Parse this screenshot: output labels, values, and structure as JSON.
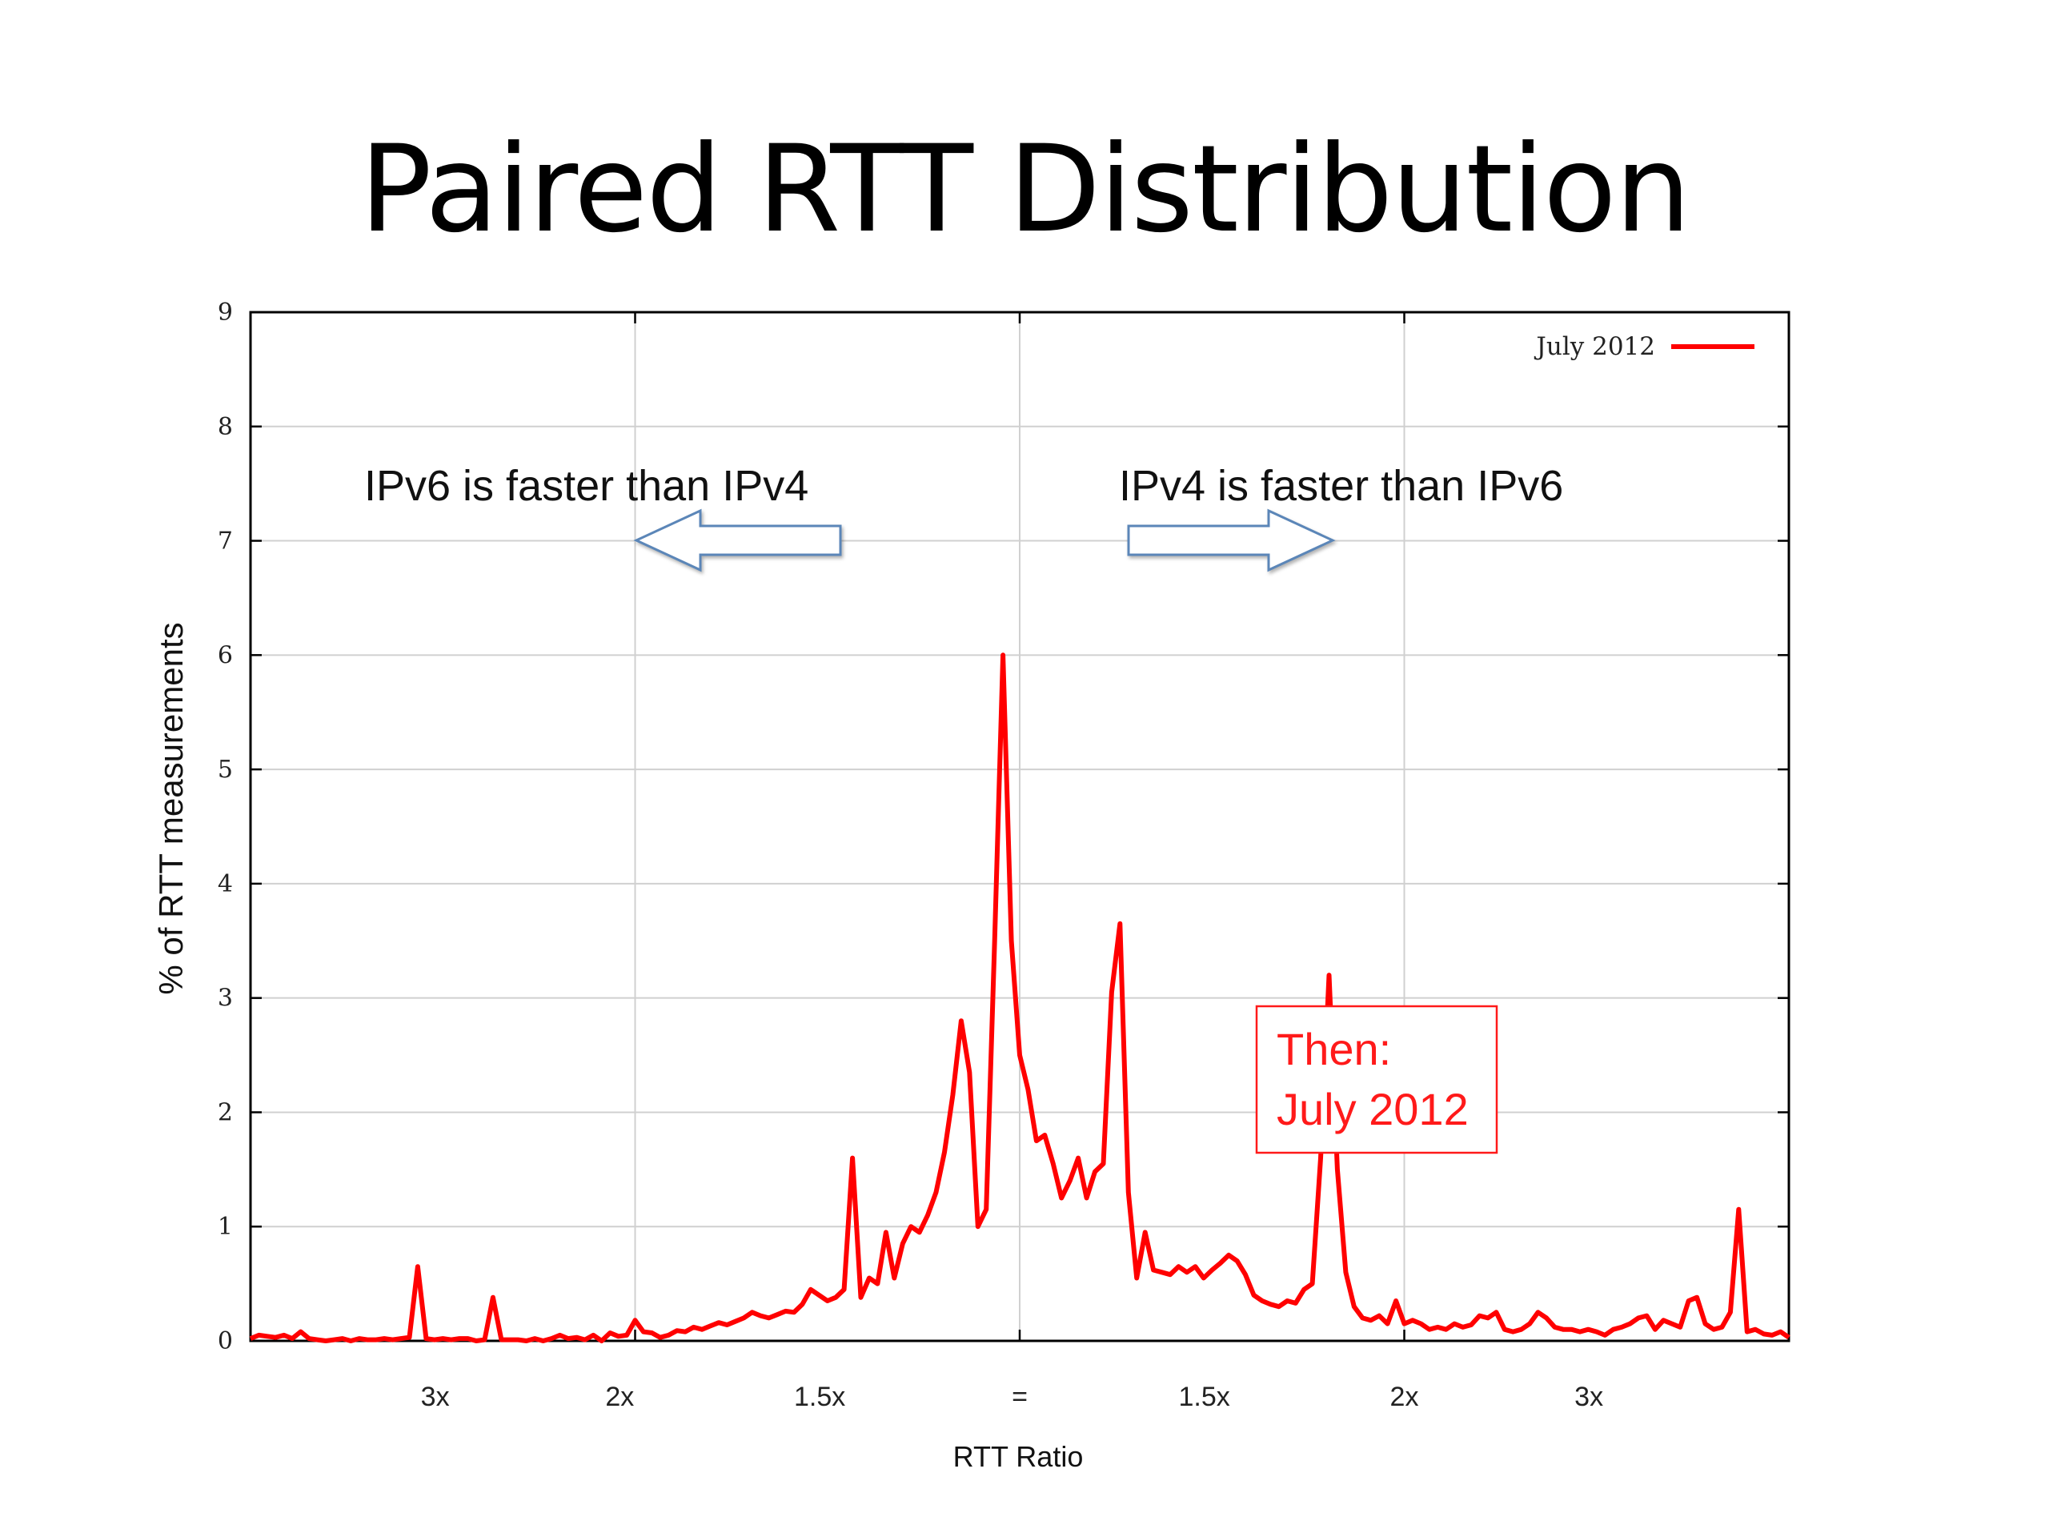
{
  "slide": {
    "title": "Paired RTT Distribution"
  },
  "chart_data": {
    "type": "line",
    "xlabel": "RTT Ratio",
    "ylabel": "% of RTT measurements",
    "ylim": [
      0,
      9
    ],
    "yticks": [
      "0",
      "1",
      "2",
      "3",
      "4",
      "5",
      "6",
      "7",
      "8",
      "9"
    ],
    "xtick_labels": [
      "3x",
      "2x",
      "1.5x",
      "=",
      "1.5x",
      "2x",
      "3x"
    ],
    "grid": true,
    "legend_position": "top-right",
    "series": [
      {
        "name": "July 2012",
        "color": "#ff0000",
        "values": [
          0.02,
          0.05,
          0.04,
          0.03,
          0.05,
          0.02,
          0.08,
          0.02,
          0.01,
          0.0,
          0.01,
          0.02,
          0.0,
          0.02,
          0.01,
          0.01,
          0.02,
          0.01,
          0.02,
          0.03,
          0.65,
          0.02,
          0.01,
          0.02,
          0.01,
          0.02,
          0.02,
          0.0,
          0.01,
          0.38,
          0.01,
          0.01,
          0.01,
          0.0,
          0.02,
          0.0,
          0.02,
          0.05,
          0.02,
          0.03,
          0.01,
          0.05,
          0.0,
          0.07,
          0.04,
          0.05,
          0.18,
          0.08,
          0.07,
          0.03,
          0.05,
          0.09,
          0.08,
          0.12,
          0.1,
          0.13,
          0.16,
          0.14,
          0.17,
          0.2,
          0.25,
          0.22,
          0.2,
          0.23,
          0.26,
          0.25,
          0.32,
          0.45,
          0.4,
          0.35,
          0.38,
          0.45,
          1.6,
          0.38,
          0.55,
          0.5,
          0.95,
          0.55,
          0.85,
          1.0,
          0.95,
          1.1,
          1.3,
          1.65,
          2.15,
          2.8,
          2.35,
          1.0,
          1.15,
          3.5,
          6.0,
          3.5,
          2.5,
          2.2,
          1.75,
          1.8,
          1.55,
          1.25,
          1.4,
          1.6,
          1.25,
          1.48,
          1.55,
          3.05,
          3.65,
          1.3,
          0.55,
          0.95,
          0.62,
          0.6,
          0.58,
          0.65,
          0.6,
          0.65,
          0.55,
          0.62,
          0.68,
          0.75,
          0.7,
          0.58,
          0.4,
          0.35,
          0.32,
          0.3,
          0.35,
          0.33,
          0.45,
          0.5,
          1.6,
          3.2,
          1.5,
          0.6,
          0.3,
          0.2,
          0.18,
          0.22,
          0.15,
          0.35,
          0.15,
          0.18,
          0.15,
          0.1,
          0.12,
          0.1,
          0.15,
          0.12,
          0.14,
          0.22,
          0.2,
          0.25,
          0.1,
          0.08,
          0.1,
          0.15,
          0.25,
          0.2,
          0.12,
          0.1,
          0.1,
          0.08,
          0.1,
          0.08,
          0.05,
          0.1,
          0.12,
          0.15,
          0.2,
          0.22,
          0.1,
          0.18,
          0.15,
          0.12,
          0.35,
          0.38,
          0.15,
          0.1,
          0.12,
          0.25,
          1.15,
          0.08,
          0.1,
          0.06,
          0.05,
          0.08,
          0.03
        ]
      }
    ]
  },
  "annotations": {
    "left": "IPv6 is faster than IPv4",
    "right": "IPv4 is faster than IPv6",
    "callout_line1": "Then:",
    "callout_line2": "July 2012"
  }
}
